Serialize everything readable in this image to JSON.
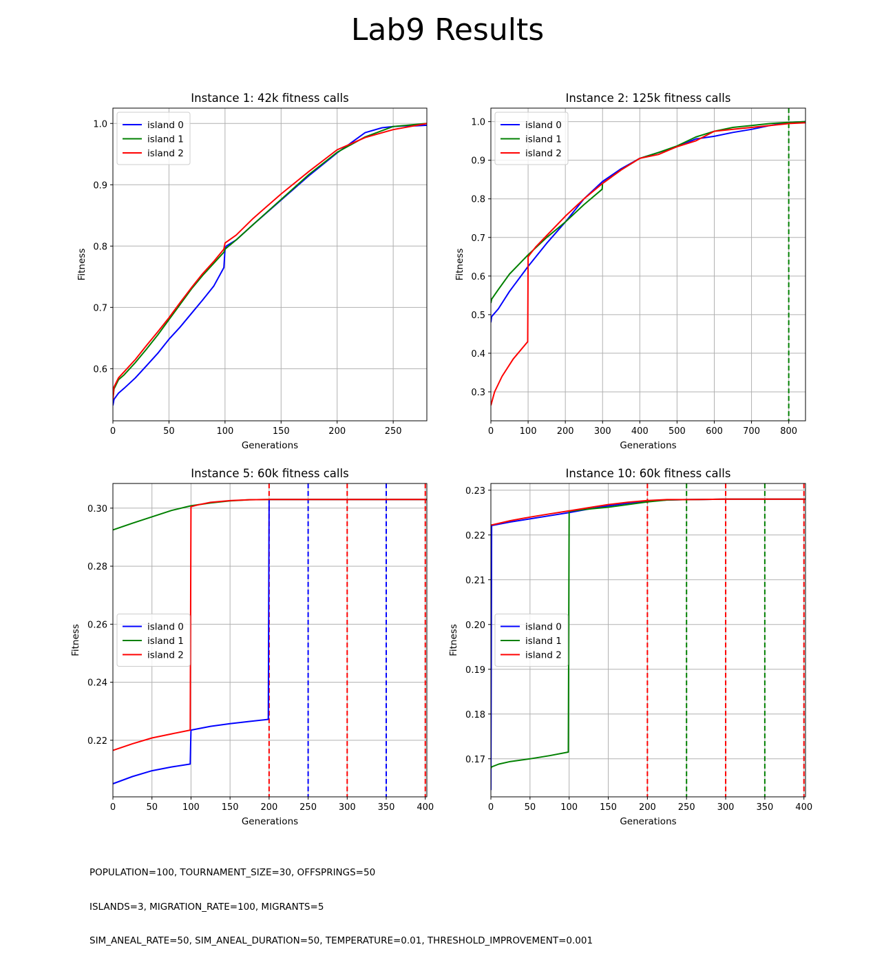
{
  "figure": {
    "title": "Lab9 Results",
    "footer_lines": [
      "POPULATION=100, TOURNAMENT_SIZE=30, OFFSPRINGS=50",
      "ISLANDS=3, MIGRATION_RATE=100, MIGRANTS=5",
      "SIM_ANEAL_RATE=50, SIM_ANEAL_DURATION=50, TEMPERATURE=0.01, THRESHOLD_IMPROVEMENT=0.001"
    ],
    "colors": {
      "island 0": "#0000ff",
      "island 1": "#008000",
      "island 2": "#ff0000",
      "grid": "#b0b0b0"
    }
  },
  "chart_data": [
    {
      "type": "line",
      "title": "Instance 1: 42k fitness calls",
      "xlabel": "Generations",
      "ylabel": "Fitness",
      "xlim": [
        0,
        280
      ],
      "ylim": [
        0.515,
        1.025
      ],
      "xticks": [
        0,
        50,
        100,
        150,
        200,
        250
      ],
      "yticks": [
        0.6,
        0.7,
        0.8,
        0.9,
        1.0
      ],
      "grid": true,
      "legend_loc": "upper left",
      "series": [
        {
          "name": "island 0",
          "color": "#0000ff",
          "x": [
            0,
            1,
            5,
            10,
            20,
            30,
            40,
            50,
            60,
            70,
            80,
            90,
            99,
            100,
            101,
            110,
            125,
            150,
            175,
            200,
            225,
            240,
            250,
            260,
            270,
            280
          ],
          "y": [
            0.54,
            0.55,
            0.56,
            0.568,
            0.585,
            0.605,
            0.625,
            0.648,
            0.668,
            0.69,
            0.712,
            0.735,
            0.765,
            0.795,
            0.8,
            0.81,
            0.835,
            0.875,
            0.915,
            0.952,
            0.985,
            0.993,
            0.995,
            0.996,
            0.996,
            0.997
          ]
        },
        {
          "name": "island 1",
          "color": "#008000",
          "x": [
            0,
            1,
            5,
            10,
            20,
            30,
            40,
            50,
            60,
            70,
            80,
            90,
            99,
            100,
            110,
            125,
            150,
            175,
            200,
            225,
            250,
            280
          ],
          "y": [
            0.55,
            0.567,
            0.582,
            0.59,
            0.61,
            0.632,
            0.655,
            0.68,
            0.705,
            0.73,
            0.752,
            0.772,
            0.79,
            0.795,
            0.81,
            0.835,
            0.876,
            0.917,
            0.953,
            0.978,
            0.995,
            1.0
          ]
        },
        {
          "name": "island 2",
          "color": "#ff0000",
          "x": [
            0,
            1,
            5,
            10,
            20,
            30,
            40,
            50,
            60,
            70,
            80,
            90,
            99,
            100,
            110,
            125,
            150,
            175,
            200,
            225,
            250,
            280
          ],
          "y": [
            0.55,
            0.57,
            0.585,
            0.595,
            0.615,
            0.638,
            0.66,
            0.683,
            0.708,
            0.732,
            0.755,
            0.775,
            0.795,
            0.805,
            0.818,
            0.845,
            0.885,
            0.922,
            0.957,
            0.977,
            0.99,
            1.0
          ]
        }
      ],
      "vlines": []
    },
    {
      "type": "line",
      "title": "Instance 2: 125k fitness calls",
      "xlabel": "Generations",
      "ylabel": "Fitness",
      "xlim": [
        0,
        845
      ],
      "ylim": [
        0.225,
        1.035
      ],
      "xticks": [
        0,
        100,
        200,
        300,
        400,
        500,
        600,
        700,
        800
      ],
      "yticks": [
        0.3,
        0.4,
        0.5,
        0.6,
        0.7,
        0.8,
        0.9,
        1.0
      ],
      "grid": true,
      "legend_loc": "upper left",
      "series": [
        {
          "name": "island 0",
          "color": "#0000ff",
          "x": [
            0,
            2,
            20,
            50,
            100,
            150,
            200,
            250,
            300,
            350,
            400,
            450,
            500,
            550,
            600,
            650,
            700,
            750,
            800,
            845
          ],
          "y": [
            0.48,
            0.495,
            0.515,
            0.56,
            0.625,
            0.685,
            0.74,
            0.8,
            0.845,
            0.878,
            0.905,
            0.92,
            0.935,
            0.955,
            0.962,
            0.972,
            0.98,
            0.99,
            0.998,
            1.0
          ]
        },
        {
          "name": "island 1",
          "color": "#008000",
          "x": [
            0,
            2,
            20,
            50,
            100,
            150,
            200,
            250,
            299,
            300,
            350,
            400,
            450,
            500,
            550,
            600,
            650,
            700,
            750,
            800,
            845
          ],
          "y": [
            0.53,
            0.54,
            0.565,
            0.605,
            0.655,
            0.7,
            0.74,
            0.785,
            0.825,
            0.84,
            0.875,
            0.905,
            0.92,
            0.937,
            0.96,
            0.975,
            0.985,
            0.99,
            0.995,
            0.998,
            1.0
          ]
        },
        {
          "name": "island 2",
          "color": "#ff0000",
          "x": [
            0,
            10,
            30,
            60,
            99,
            100,
            120,
            150,
            200,
            250,
            300,
            350,
            400,
            450,
            500,
            550,
            600,
            650,
            700,
            750,
            800,
            845
          ],
          "y": [
            0.265,
            0.3,
            0.34,
            0.385,
            0.43,
            0.65,
            0.675,
            0.705,
            0.755,
            0.8,
            0.84,
            0.875,
            0.905,
            0.915,
            0.935,
            0.95,
            0.975,
            0.98,
            0.985,
            0.99,
            0.995,
            0.997
          ]
        }
      ],
      "vlines": [
        {
          "x": 800,
          "color": "#008000"
        }
      ]
    },
    {
      "type": "line",
      "title": "Instance 5: 60k fitness calls",
      "xlabel": "Generations",
      "ylabel": "Fitness",
      "xlim": [
        0,
        402
      ],
      "ylim": [
        0.2005,
        0.3085
      ],
      "xticks": [
        0,
        50,
        100,
        150,
        200,
        250,
        300,
        350,
        400
      ],
      "yticks": [
        0.22,
        0.24,
        0.26,
        0.28,
        0.3
      ],
      "grid": true,
      "legend_loc": "center left",
      "series": [
        {
          "name": "island 0",
          "color": "#0000ff",
          "x": [
            0,
            25,
            50,
            75,
            99,
            100,
            125,
            150,
            175,
            199,
            200,
            250,
            300,
            350,
            402
          ],
          "y": [
            0.205,
            0.2075,
            0.2095,
            0.2108,
            0.2118,
            0.2235,
            0.2248,
            0.2257,
            0.2265,
            0.2272,
            0.303,
            0.303,
            0.303,
            0.303,
            0.303
          ]
        },
        {
          "name": "island 1",
          "color": "#008000",
          "x": [
            0,
            25,
            50,
            75,
            100,
            125,
            150,
            175,
            200,
            250,
            300,
            350,
            402
          ],
          "y": [
            0.2925,
            0.2948,
            0.297,
            0.2992,
            0.3008,
            0.3018,
            0.3025,
            0.3029,
            0.303,
            0.303,
            0.303,
            0.303,
            0.303
          ]
        },
        {
          "name": "island 2",
          "color": "#ff0000",
          "x": [
            0,
            25,
            50,
            75,
            99,
            100,
            110,
            125,
            150,
            175,
            200,
            250,
            300,
            350,
            402
          ],
          "y": [
            0.2165,
            0.2188,
            0.2208,
            0.2222,
            0.2235,
            0.3005,
            0.3012,
            0.302,
            0.3026,
            0.3029,
            0.303,
            0.303,
            0.303,
            0.303,
            0.303
          ]
        }
      ],
      "vlines": [
        {
          "x": 200,
          "color": "#ff0000"
        },
        {
          "x": 250,
          "color": "#0000ff"
        },
        {
          "x": 300,
          "color": "#ff0000"
        },
        {
          "x": 350,
          "color": "#0000ff"
        },
        {
          "x": 400,
          "color": "#ff0000"
        }
      ]
    },
    {
      "type": "line",
      "title": "Instance 10: 60k fitness calls",
      "xlabel": "Generations",
      "ylabel": "Fitness",
      "xlim": [
        0,
        402
      ],
      "ylim": [
        0.1615,
        0.2315
      ],
      "xticks": [
        0,
        50,
        100,
        150,
        200,
        250,
        300,
        350,
        400
      ],
      "yticks": [
        0.17,
        0.18,
        0.19,
        0.2,
        0.21,
        0.22,
        0.23
      ],
      "grid": true,
      "legend_loc": "center left",
      "series": [
        {
          "name": "island 0",
          "color": "#0000ff",
          "x": [
            0,
            1,
            25,
            50,
            75,
            100,
            125,
            150,
            175,
            200,
            225,
            250,
            300,
            350,
            402
          ],
          "y": [
            0.163,
            0.2221,
            0.2229,
            0.2236,
            0.2243,
            0.225,
            0.2258,
            0.2265,
            0.2271,
            0.2276,
            0.2278,
            0.2279,
            0.228,
            0.228,
            0.228
          ]
        },
        {
          "name": "island 1",
          "color": "#008000",
          "x": [
            0,
            1,
            10,
            25,
            50,
            75,
            99,
            100,
            125,
            150,
            175,
            200,
            225,
            250,
            300,
            350,
            402
          ],
          "y": [
            0.1678,
            0.1682,
            0.1688,
            0.1694,
            0.17,
            0.1707,
            0.1715,
            0.2253,
            0.2258,
            0.2262,
            0.2268,
            0.2274,
            0.2278,
            0.2279,
            0.228,
            0.228,
            0.228
          ]
        },
        {
          "name": "island 2",
          "color": "#ff0000",
          "x": [
            0,
            25,
            50,
            75,
            100,
            125,
            150,
            175,
            200,
            225,
            250,
            300,
            350,
            402
          ],
          "y": [
            0.2222,
            0.2232,
            0.224,
            0.2247,
            0.2254,
            0.2261,
            0.2268,
            0.2273,
            0.2277,
            0.2279,
            0.2279,
            0.228,
            0.228,
            0.228
          ]
        }
      ],
      "vlines": [
        {
          "x": 200,
          "color": "#ff0000"
        },
        {
          "x": 250,
          "color": "#008000"
        },
        {
          "x": 300,
          "color": "#ff0000"
        },
        {
          "x": 350,
          "color": "#008000"
        },
        {
          "x": 400,
          "color": "#ff0000"
        }
      ]
    }
  ]
}
